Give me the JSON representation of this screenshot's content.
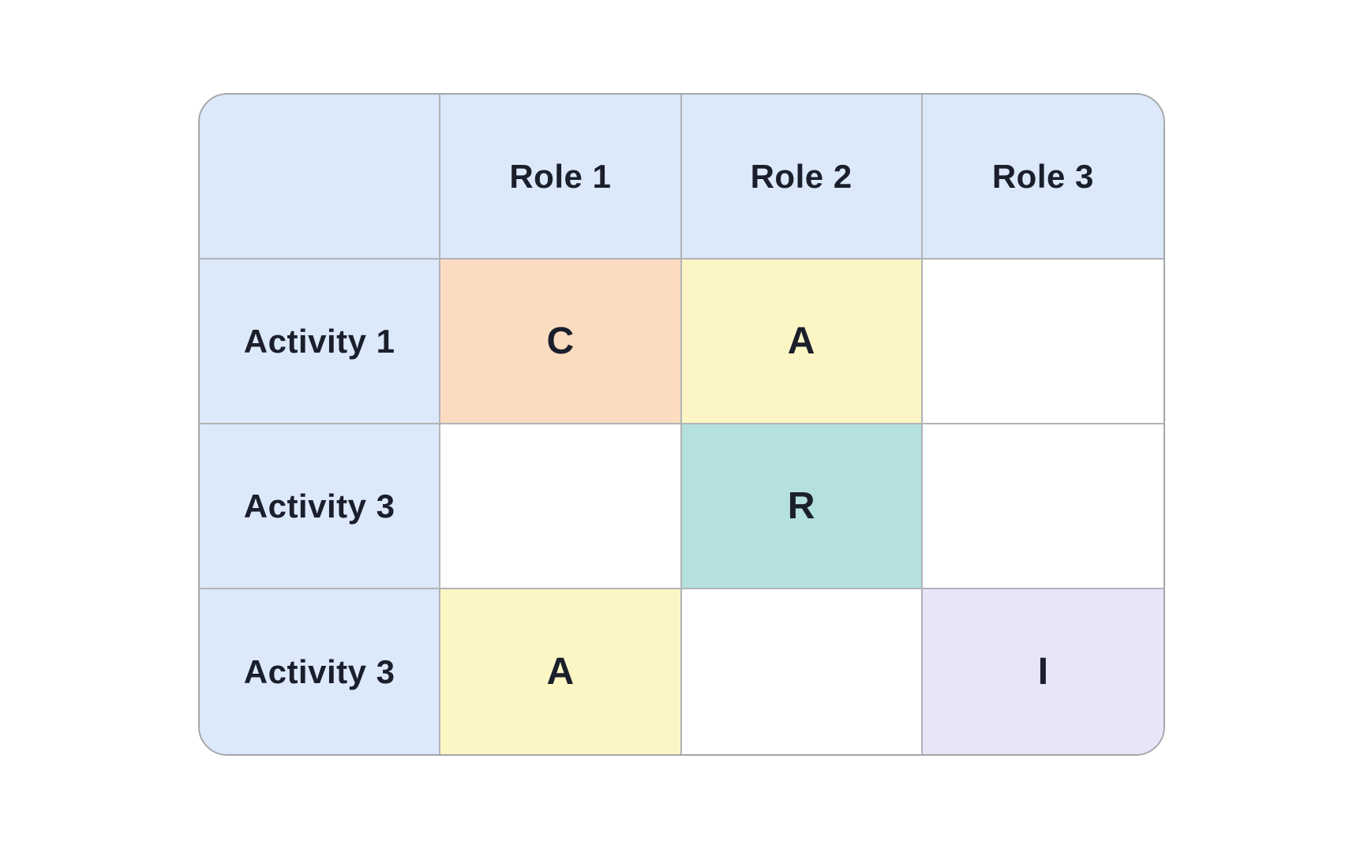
{
  "chart_data": {
    "type": "table",
    "title": "",
    "columns": [
      "Role 1",
      "Role 2",
      "Role 3"
    ],
    "row_labels": [
      "Activity 1",
      "Activity 3",
      "Activity 3"
    ],
    "cell_values": [
      [
        "C",
        "A",
        ""
      ],
      [
        "",
        "R",
        ""
      ],
      [
        "A",
        "",
        "I"
      ]
    ]
  },
  "matrix": {
    "corner_label": "",
    "columns": [
      "Role 1",
      "Role 2",
      "Role 3"
    ],
    "rows": [
      {
        "label": "Activity 1",
        "cells": [
          {
            "letter": "C",
            "color": "#fcdcc1"
          },
          {
            "letter": "A",
            "color": "#fcf6c5"
          },
          {
            "letter": "",
            "color": "#ffffff"
          }
        ]
      },
      {
        "label": "Activity 3",
        "cells": [
          {
            "letter": "",
            "color": "#ffffff"
          },
          {
            "letter": "R",
            "color": "#b4e0dd"
          },
          {
            "letter": "",
            "color": "#ffffff"
          }
        ]
      },
      {
        "label": "Activity 3",
        "cells": [
          {
            "letter": "A",
            "color": "#fcf6c5"
          },
          {
            "letter": "",
            "color": "#ffffff"
          },
          {
            "letter": "I",
            "color": "#e8e5f9"
          }
        ]
      }
    ],
    "colors": {
      "header_bg": "#dce9fa",
      "label_bg": "#dce9fa",
      "cell_c_bg": "#fcdcc1",
      "cell_a_bg": "#fcf6c5",
      "cell_r_bg": "#b4e0dd",
      "cell_i_bg": "#e8e5f9",
      "grid_line": "#b2b3b7",
      "outer_border": "#a5a6aa",
      "text": "#1a1f2b",
      "page_bg": "#ffffff"
    }
  }
}
